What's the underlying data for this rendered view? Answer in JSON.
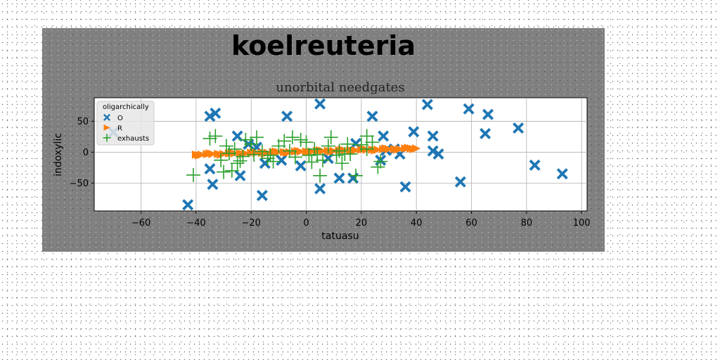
{
  "chart_data": {
    "type": "scatter",
    "suptitle": "koelreuteria",
    "title": "unorbital needgates",
    "xlabel": "tatuasu",
    "ylabel": "indoxylic",
    "xlim": [
      -77,
      102
    ],
    "ylim": [
      -95,
      88
    ],
    "xticks": [
      -60,
      -40,
      -20,
      0,
      20,
      40,
      60,
      80,
      100
    ],
    "yticks": [
      -50,
      0,
      50
    ],
    "xtick_labels": [
      "−60",
      "−40",
      "−20",
      "0",
      "20",
      "40",
      "60",
      "80",
      "100"
    ],
    "ytick_labels": [
      "−50",
      "0",
      "50"
    ],
    "grid": true,
    "legend": {
      "title": "oligarchically",
      "placement": "top-left",
      "entries": [
        "O",
        "R",
        "exhausts"
      ]
    },
    "series": [
      {
        "name": "O",
        "marker": "X",
        "color": "#1f77b4",
        "points": [
          [
            -43,
            -85
          ],
          [
            -34,
            -52
          ],
          [
            -35,
            -27
          ],
          [
            -33,
            63
          ],
          [
            -35,
            58
          ],
          [
            -25,
            26
          ],
          [
            -24,
            -38
          ],
          [
            -21,
            13
          ],
          [
            -16,
            -70
          ],
          [
            -15,
            -18
          ],
          [
            -9,
            -13
          ],
          [
            -7,
            58
          ],
          [
            -2,
            -22
          ],
          [
            5,
            78
          ],
          [
            5,
            -59
          ],
          [
            8,
            -10
          ],
          [
            12,
            -42
          ],
          [
            17,
            -42
          ],
          [
            18,
            14
          ],
          [
            24,
            58
          ],
          [
            28,
            26
          ],
          [
            29,
            3
          ],
          [
            32,
            5
          ],
          [
            34,
            -3
          ],
          [
            36,
            -56
          ],
          [
            39,
            33
          ],
          [
            44,
            77
          ],
          [
            46,
            26
          ],
          [
            46,
            2
          ],
          [
            48,
            -3
          ],
          [
            56,
            -48
          ],
          [
            59,
            70
          ],
          [
            65,
            30
          ],
          [
            66,
            61
          ],
          [
            77,
            39
          ],
          [
            83,
            -21
          ],
          [
            93,
            -35
          ],
          [
            -70,
            32
          ],
          [
            -18,
            8
          ],
          [
            27,
            -13
          ]
        ]
      },
      {
        "name": "R",
        "marker": "triangle-right",
        "color": "#ff7f0e",
        "points": [
          [
            -40,
            -4
          ],
          [
            -38,
            -4
          ],
          [
            -36,
            -3
          ],
          [
            -34,
            -3
          ],
          [
            -32,
            -3
          ],
          [
            -30,
            -3
          ],
          [
            -28,
            -2
          ],
          [
            -26,
            -2
          ],
          [
            -24,
            -2
          ],
          [
            -22,
            -2
          ],
          [
            -20,
            -1
          ],
          [
            -18,
            -1
          ],
          [
            -16,
            -1
          ],
          [
            -14,
            -1
          ],
          [
            -12,
            0
          ],
          [
            -10,
            0
          ],
          [
            -8,
            0
          ],
          [
            -6,
            0
          ],
          [
            -4,
            1
          ],
          [
            -2,
            1
          ],
          [
            0,
            1
          ],
          [
            2,
            1
          ],
          [
            4,
            2
          ],
          [
            6,
            2
          ],
          [
            8,
            2
          ],
          [
            10,
            2
          ],
          [
            12,
            3
          ],
          [
            14,
            3
          ],
          [
            16,
            3
          ],
          [
            18,
            3
          ],
          [
            20,
            4
          ],
          [
            22,
            4
          ],
          [
            24,
            4
          ],
          [
            26,
            4
          ],
          [
            28,
            5
          ],
          [
            30,
            5
          ],
          [
            32,
            5
          ],
          [
            34,
            5
          ],
          [
            36,
            6
          ],
          [
            38,
            6
          ],
          [
            40,
            6
          ],
          [
            -39,
            -5
          ],
          [
            -35,
            -2
          ],
          [
            -31,
            -4
          ],
          [
            -27,
            -1
          ],
          [
            -23,
            -3
          ],
          [
            -19,
            0
          ],
          [
            -15,
            -2
          ],
          [
            -11,
            1
          ],
          [
            -7,
            -1
          ],
          [
            -3,
            2
          ],
          [
            1,
            0
          ],
          [
            5,
            3
          ],
          [
            9,
            1
          ],
          [
            13,
            4
          ],
          [
            17,
            2
          ],
          [
            21,
            5
          ],
          [
            25,
            3
          ],
          [
            29,
            6
          ],
          [
            33,
            4
          ],
          [
            37,
            7
          ],
          [
            39,
            5
          ]
        ]
      },
      {
        "name": "exhausts",
        "marker": "plus",
        "color": "#2ca02c",
        "points": [
          [
            -41,
            -37
          ],
          [
            -35,
            22
          ],
          [
            -33,
            26
          ],
          [
            -30,
            -32
          ],
          [
            -31,
            -13
          ],
          [
            -29,
            10
          ],
          [
            -28,
            -2
          ],
          [
            -26,
            5
          ],
          [
            -25,
            -18
          ],
          [
            -23,
            -7
          ],
          [
            -22,
            20
          ],
          [
            -20,
            13
          ],
          [
            -19,
            -4
          ],
          [
            -18,
            24
          ],
          [
            -16,
            1
          ],
          [
            -14,
            -10
          ],
          [
            -12,
            -15
          ],
          [
            -10,
            10
          ],
          [
            -8,
            18
          ],
          [
            -6,
            2
          ],
          [
            -5,
            24
          ],
          [
            -4,
            -8
          ],
          [
            -2,
            20
          ],
          [
            0,
            16
          ],
          [
            1,
            -5
          ],
          [
            3,
            5
          ],
          [
            4,
            -4
          ],
          [
            5,
            -38
          ],
          [
            6,
            -13
          ],
          [
            8,
            10
          ],
          [
            9,
            24
          ],
          [
            11,
            -5
          ],
          [
            12,
            2
          ],
          [
            13,
            -18
          ],
          [
            14,
            -3
          ],
          [
            15,
            13
          ],
          [
            16,
            -3
          ],
          [
            18,
            -38
          ],
          [
            20,
            12
          ],
          [
            22,
            5
          ],
          [
            22,
            26
          ],
          [
            24,
            16
          ],
          [
            26,
            -24
          ],
          [
            27,
            -15
          ],
          [
            -27,
            -30
          ],
          [
            -24,
            -14
          ],
          [
            -13,
            -5
          ],
          [
            2,
            -16
          ]
        ]
      }
    ]
  }
}
